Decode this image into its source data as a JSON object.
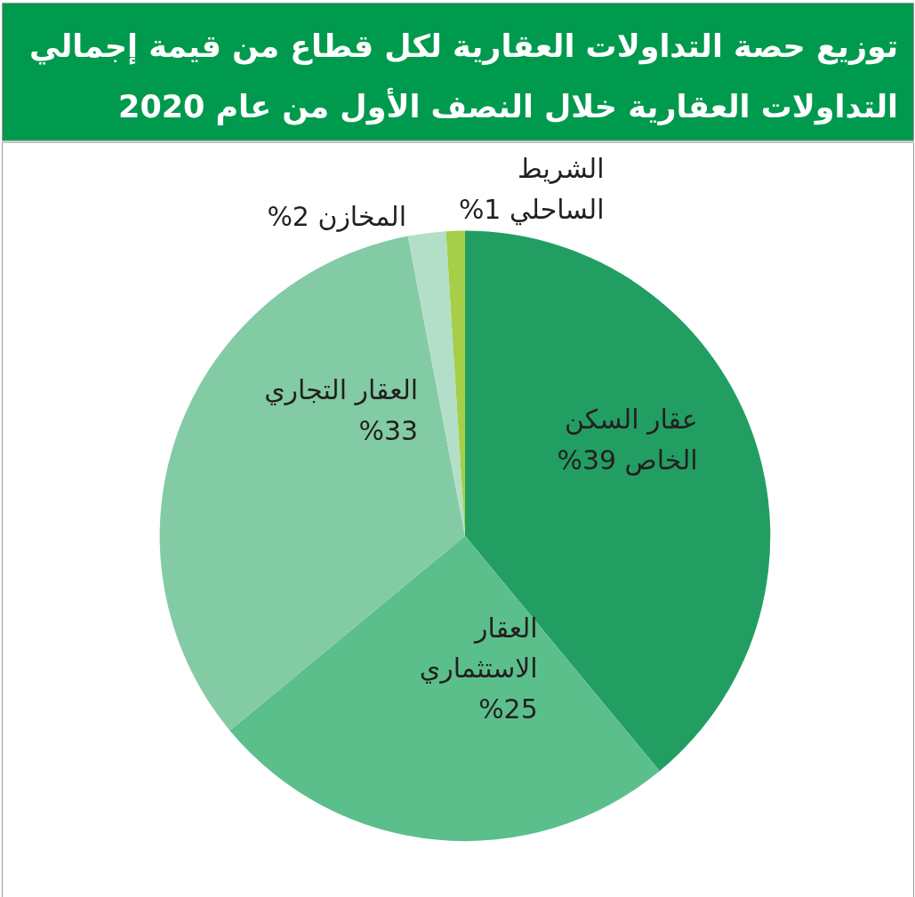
{
  "chart_data": {
    "type": "pie",
    "title": "توزيع حصة التداولات العقارية لكل قطاع من قيمة إجمالي التداولات العقارية خلال النصف الأول من عام 2020",
    "categories": [
      "عقار السكن الخاص",
      "العقار الاستثماري",
      "العقار التجاري",
      "المخازن",
      "الشريط الساحلي"
    ],
    "values": [
      39,
      25,
      33,
      2,
      1
    ],
    "value_labels": [
      "%39",
      "%25",
      "%33",
      "%2",
      "%1"
    ],
    "colors": [
      "#229e63",
      "#5bbf8c",
      "#83cba4",
      "#b3dfc9",
      "#a6ce48"
    ]
  }
}
